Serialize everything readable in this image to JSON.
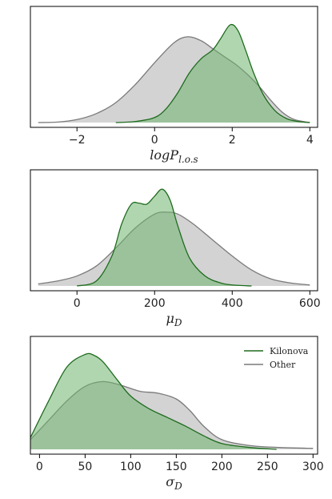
{
  "chart_data": [
    {
      "type": "area",
      "title": "",
      "xlabel_main": "logP",
      "xlabel_sub": "l.o.s",
      "xlim": [
        -3.2,
        4.2
      ],
      "ylim": [
        0,
        1.1
      ],
      "xticks": [
        -2,
        0,
        2,
        4
      ],
      "tick_labels": [
        "−2",
        "0",
        "2",
        "4"
      ],
      "legend": null,
      "series": [
        {
          "name": "Other",
          "color_line": "#7a7a7a",
          "color_fill": "#c8c8c8",
          "x": [
            -3,
            -2.5,
            -2,
            -1.5,
            -1,
            -0.5,
            0,
            0.5,
            0.85,
            1.2,
            1.5,
            1.8,
            2.1,
            2.4,
            2.7,
            3.0,
            3.3,
            3.6,
            4.0
          ],
          "y": [
            0.0,
            0.005,
            0.03,
            0.09,
            0.2,
            0.38,
            0.6,
            0.8,
            0.86,
            0.82,
            0.74,
            0.66,
            0.58,
            0.48,
            0.36,
            0.22,
            0.1,
            0.03,
            0.0
          ]
        },
        {
          "name": "Kilonova",
          "color_line": "#1e6b1e",
          "color_fill": "#6fb46f",
          "x": [
            -1,
            -0.5,
            0,
            0.3,
            0.6,
            0.9,
            1.2,
            1.5,
            1.7,
            1.95,
            2.15,
            2.35,
            2.55,
            2.8,
            3.1,
            3.4,
            3.7,
            4.0
          ],
          "y": [
            0.0,
            0.01,
            0.05,
            0.14,
            0.3,
            0.5,
            0.64,
            0.73,
            0.84,
            0.98,
            0.92,
            0.72,
            0.5,
            0.28,
            0.12,
            0.04,
            0.01,
            0.0
          ]
        }
      ]
    },
    {
      "type": "area",
      "title": "",
      "xlabel_main": "μ",
      "xlabel_sub": "D",
      "xlim": [
        -120,
        620
      ],
      "ylim": [
        0,
        1.1
      ],
      "xticks": [
        0,
        200,
        400,
        600
      ],
      "tick_labels": [
        "0",
        "200",
        "400",
        "600"
      ],
      "legend": null,
      "series": [
        {
          "name": "Other",
          "color_line": "#7a7a7a",
          "color_fill": "#c8c8c8",
          "x": [
            -100,
            -50,
            0,
            50,
            100,
            150,
            200,
            230,
            260,
            300,
            350,
            400,
            450,
            500,
            550,
            600
          ],
          "y": [
            0.02,
            0.05,
            0.1,
            0.2,
            0.38,
            0.58,
            0.72,
            0.74,
            0.72,
            0.62,
            0.46,
            0.3,
            0.16,
            0.07,
            0.03,
            0.01
          ]
        },
        {
          "name": "Kilonova",
          "color_line": "#1e6b1e",
          "color_fill": "#6fb46f",
          "x": [
            0,
            50,
            90,
            115,
            140,
            160,
            180,
            200,
            220,
            240,
            260,
            290,
            330,
            370,
            400,
            450
          ],
          "y": [
            0.0,
            0.05,
            0.3,
            0.62,
            0.82,
            0.83,
            0.82,
            0.9,
            0.97,
            0.86,
            0.6,
            0.28,
            0.1,
            0.03,
            0.01,
            0.0
          ]
        }
      ]
    },
    {
      "type": "area",
      "title": "",
      "xlabel_main": "σ",
      "xlabel_sub": "D",
      "xlim": [
        -10,
        305
      ],
      "ylim": [
        0,
        1.1
      ],
      "xticks": [
        0,
        50,
        100,
        150,
        200,
        250,
        300
      ],
      "tick_labels": [
        "0",
        "50",
        "100",
        "150",
        "200",
        "250",
        "300"
      ],
      "legend": {
        "position": "top-right",
        "entries": [
          "Kilonova",
          "Other"
        ]
      },
      "series": [
        {
          "name": "Other",
          "color_line": "#7a7a7a",
          "color_fill": "#c8c8c8",
          "x": [
            -10,
            10,
            30,
            50,
            70,
            90,
            110,
            130,
            150,
            165,
            180,
            200,
            230,
            260,
            300
          ],
          "y": [
            0.1,
            0.3,
            0.5,
            0.65,
            0.7,
            0.66,
            0.6,
            0.58,
            0.52,
            0.4,
            0.24,
            0.1,
            0.04,
            0.02,
            0.01
          ]
        },
        {
          "name": "Kilonova",
          "color_line": "#1e6b1e",
          "color_fill": "#6fb46f",
          "x": [
            -10,
            10,
            30,
            50,
            60,
            70,
            85,
            100,
            120,
            140,
            160,
            180,
            200,
            230,
            260
          ],
          "y": [
            0.12,
            0.5,
            0.85,
            0.98,
            0.97,
            0.9,
            0.72,
            0.55,
            0.42,
            0.33,
            0.24,
            0.14,
            0.06,
            0.02,
            0.0
          ]
        }
      ]
    }
  ]
}
